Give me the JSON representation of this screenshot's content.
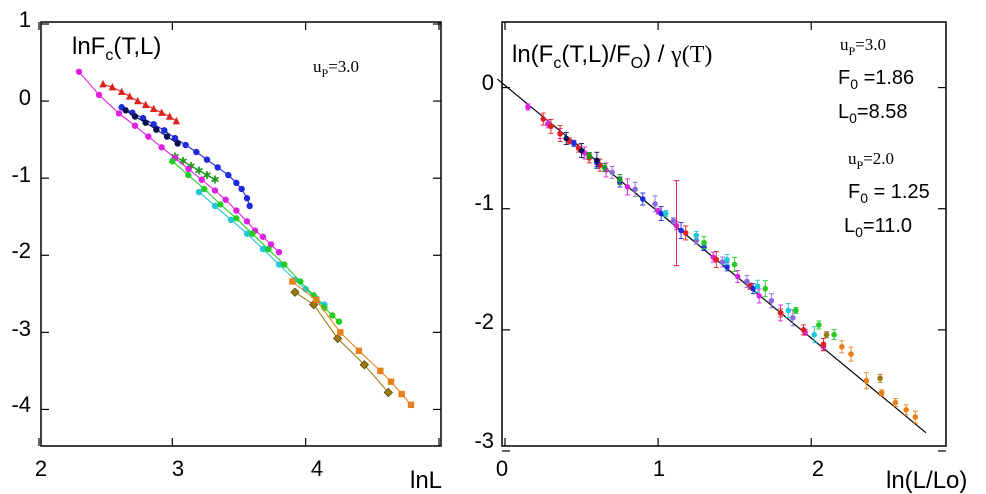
{
  "chart_data": [
    {
      "type": "line",
      "title_main": "lnF",
      "title_sub": "c",
      "title_tail": "(T,L)",
      "xlabel": "lnL",
      "xlim": [
        2,
        5
      ],
      "ylim": [
        -4.5,
        1
      ],
      "xticks": [
        "2",
        "3",
        "4"
      ],
      "yticks": [
        "1",
        "0",
        "-1",
        "-2",
        "-3",
        "-4"
      ],
      "annotation": {
        "u": "u",
        "sub": "P",
        "value": "=3.0"
      },
      "series": [
        {
          "color": "#e0201e",
          "marker": "triangle",
          "points": [
            [
              2.48,
              0.22
            ],
            [
              2.55,
              0.18
            ],
            [
              2.62,
              0.12
            ],
            [
              2.68,
              0.06
            ],
            [
              2.74,
              0.0
            ],
            [
              2.8,
              -0.05
            ],
            [
              2.86,
              -0.1
            ],
            [
              2.92,
              -0.15
            ],
            [
              2.98,
              -0.2
            ],
            [
              3.03,
              -0.26
            ]
          ]
        },
        {
          "color": "#1e2bdc",
          "marker": "circle",
          "points": [
            [
              2.62,
              -0.08
            ],
            [
              2.7,
              -0.15
            ],
            [
              2.78,
              -0.22
            ],
            [
              2.86,
              -0.3
            ],
            [
              2.94,
              -0.38
            ],
            [
              3.02,
              -0.48
            ],
            [
              3.1,
              -0.57
            ],
            [
              3.18,
              -0.66
            ],
            [
              3.26,
              -0.76
            ],
            [
              3.34,
              -0.86
            ],
            [
              3.42,
              -0.96
            ],
            [
              3.48,
              -1.06
            ],
            [
              3.52,
              -1.14
            ],
            [
              3.56,
              -1.26
            ],
            [
              3.58,
              -1.36
            ]
          ]
        },
        {
          "color": "#0a1050",
          "marker": "circle",
          "points": [
            [
              2.65,
              -0.12
            ],
            [
              2.72,
              -0.2
            ],
            [
              2.8,
              -0.28
            ],
            [
              2.88,
              -0.37
            ],
            [
              2.96,
              -0.46
            ],
            [
              3.04,
              -0.55
            ]
          ]
        },
        {
          "color": "#1a9a1a",
          "marker": "star",
          "points": [
            [
              3.02,
              -0.72
            ],
            [
              3.08,
              -0.78
            ],
            [
              3.14,
              -0.84
            ],
            [
              3.2,
              -0.9
            ],
            [
              3.26,
              -0.96
            ],
            [
              3.32,
              -1.02
            ]
          ]
        },
        {
          "color": "#e020e0",
          "marker": "circle",
          "points": [
            [
              2.3,
              0.38
            ],
            [
              2.45,
              0.08
            ],
            [
              2.6,
              -0.16
            ],
            [
              2.72,
              -0.32
            ],
            [
              2.82,
              -0.46
            ],
            [
              2.92,
              -0.6
            ],
            [
              3.02,
              -0.74
            ],
            [
              3.12,
              -0.88
            ],
            [
              3.22,
              -1.02
            ],
            [
              3.32,
              -1.16
            ],
            [
              3.4,
              -1.28
            ],
            [
              3.48,
              -1.42
            ],
            [
              3.56,
              -1.56
            ],
            [
              3.62,
              -1.68
            ],
            [
              3.68,
              -1.76
            ],
            [
              3.74,
              -1.86
            ],
            [
              3.8,
              -1.96
            ]
          ]
        },
        {
          "color": "#22c8d8",
          "marker": "circle",
          "points": [
            [
              3.2,
              -1.18
            ],
            [
              3.32,
              -1.36
            ],
            [
              3.44,
              -1.54
            ],
            [
              3.56,
              -1.72
            ],
            [
              3.68,
              -1.92
            ],
            [
              3.8,
              -2.12
            ],
            [
              3.92,
              -2.32
            ],
            [
              4.0,
              -2.44
            ],
            [
              4.08,
              -2.56
            ],
            [
              4.14,
              -2.64
            ]
          ]
        },
        {
          "color": "#22cc22",
          "marker": "circle",
          "points": [
            [
              3.0,
              -0.78
            ],
            [
              3.12,
              -0.96
            ],
            [
              3.24,
              -1.14
            ],
            [
              3.36,
              -1.34
            ],
            [
              3.48,
              -1.52
            ],
            [
              3.6,
              -1.72
            ],
            [
              3.72,
              -1.92
            ],
            [
              3.84,
              -2.12
            ],
            [
              3.96,
              -2.34
            ],
            [
              4.06,
              -2.52
            ],
            [
              4.14,
              -2.68
            ],
            [
              4.2,
              -2.78
            ],
            [
              4.25,
              -2.86
            ]
          ]
        },
        {
          "color": "#9a7a10",
          "marker": "diamond",
          "points": [
            [
              3.92,
              -2.48
            ],
            [
              4.06,
              -2.64
            ],
            [
              4.24,
              -3.08
            ],
            [
              4.44,
              -3.42
            ],
            [
              4.62,
              -3.78
            ]
          ]
        },
        {
          "color": "#e8801a",
          "marker": "square",
          "points": [
            [
              3.9,
              -2.34
            ],
            [
              4.08,
              -2.58
            ],
            [
              4.26,
              -3.0
            ],
            [
              4.4,
              -3.24
            ],
            [
              4.56,
              -3.5
            ],
            [
              4.64,
              -3.64
            ],
            [
              4.72,
              -3.8
            ],
            [
              4.79,
              -3.94
            ]
          ]
        }
      ]
    },
    {
      "type": "scatter",
      "title_main": "ln(F",
      "title_sub": "c",
      "title_mid": "(T,L)/F",
      "title_sub2": "O",
      "title_tail": ") / ",
      "title_gamma": "γ(T)",
      "xlabel": "ln(L/Lo)",
      "xlim": [
        0,
        2.9
      ],
      "ylim": [
        -3,
        0.5
      ],
      "xticks": [
        "0",
        "1",
        "2"
      ],
      "yticks": [
        "0",
        "-1",
        "-2",
        "-3"
      ],
      "fit_line": {
        "x": [
          -0.05,
          2.75
        ],
        "y": [
          0.07,
          -2.85
        ]
      },
      "annotations": [
        {
          "u": "u",
          "sub": "P",
          "value": "=3.0",
          "f_label": "F",
          "f_sub": "0",
          "f_value": " =1.86",
          "l_label": "L",
          "l_sub": "0",
          "l_value": "=8.58"
        },
        {
          "u": "u",
          "sub": "P",
          "value": "=2.0",
          "f_label": "F",
          "f_sub": "0",
          "f_value": " = 1.25",
          "l_label": "L",
          "l_sub": "0",
          "l_value": "=11.0"
        }
      ],
      "series": [
        {
          "color": "#e020e0",
          "points": [
            [
              0.15,
              -0.16
            ],
            [
              0.28,
              -0.3
            ],
            [
              0.36,
              -0.38
            ],
            [
              0.52,
              -0.54
            ],
            [
              0.66,
              -0.68
            ],
            [
              0.8,
              -0.82
            ],
            [
              1.0,
              -1.02
            ],
            [
              1.12,
              -1.14
            ],
            [
              1.36,
              -1.4
            ],
            [
              1.52,
              -1.56
            ],
            [
              1.66,
              -1.72
            ],
            [
              1.8,
              -1.86
            ],
            [
              1.96,
              -2.02
            ],
            [
              2.08,
              -2.14
            ]
          ]
        },
        {
          "color": "#e0201e",
          "points": [
            [
              0.25,
              -0.26
            ],
            [
              0.3,
              -0.32
            ],
            [
              0.36,
              -0.38
            ],
            [
              0.42,
              -0.44
            ],
            [
              0.48,
              -0.5
            ],
            [
              0.55,
              -0.58
            ],
            [
              0.62,
              -0.64
            ],
            [
              1.18,
              -1.2
            ],
            [
              1.38,
              -1.42
            ],
            [
              1.6,
              -1.64
            ],
            [
              1.8,
              -1.86
            ],
            [
              1.95,
              -2.0
            ],
            [
              2.08,
              -2.12
            ]
          ]
        },
        {
          "color": "#1e2bdc",
          "points": [
            [
              0.45,
              -0.46
            ],
            [
              0.6,
              -0.62
            ],
            [
              0.75,
              -0.78
            ],
            [
              0.9,
              -0.92
            ],
            [
              1.02,
              -1.04
            ],
            [
              1.15,
              -1.18
            ],
            [
              1.3,
              -1.32
            ],
            [
              1.45,
              -1.48
            ],
            [
              1.62,
              -1.66
            ]
          ]
        },
        {
          "color": "#8a6ad8",
          "points": [
            [
              0.7,
              -0.7
            ],
            [
              0.85,
              -0.84
            ],
            [
              0.98,
              -0.96
            ],
            [
              1.1,
              -1.1
            ],
            [
              1.25,
              -1.26
            ],
            [
              1.42,
              -1.44
            ],
            [
              1.58,
              -1.6
            ],
            [
              1.74,
              -1.76
            ],
            [
              1.88,
              -1.9
            ]
          ]
        },
        {
          "color": "#22c8d8",
          "points": [
            [
              1.05,
              -1.04
            ],
            [
              1.25,
              -1.22
            ],
            [
              1.45,
              -1.42
            ],
            [
              1.65,
              -1.64
            ],
            [
              1.85,
              -1.84
            ],
            [
              2.02,
              -2.04
            ]
          ]
        },
        {
          "color": "#22cc22",
          "points": [
            [
              1.3,
              -1.28
            ],
            [
              1.5,
              -1.46
            ],
            [
              1.7,
              -1.66
            ],
            [
              1.9,
              -1.84
            ],
            [
              2.05,
              -1.96
            ],
            [
              2.15,
              -2.04
            ]
          ]
        },
        {
          "color": "#9a7a10",
          "points": [
            [
              2.1,
              -2.04
            ],
            [
              2.45,
              -2.4
            ]
          ]
        },
        {
          "color": "#e8801a",
          "points": [
            [
              2.2,
              -2.14
            ],
            [
              2.26,
              -2.2
            ],
            [
              2.36,
              -2.42
            ],
            [
              2.46,
              -2.52
            ],
            [
              2.55,
              -2.6
            ],
            [
              2.62,
              -2.66
            ],
            [
              2.68,
              -2.72
            ]
          ]
        },
        {
          "color": "#1a9a1a",
          "points": [
            [
              0.55,
              -0.56
            ],
            [
              0.65,
              -0.66
            ],
            [
              0.75,
              -0.76
            ]
          ]
        },
        {
          "color": "#0a1050",
          "points": [
            [
              0.4,
              -0.42
            ],
            [
              0.5,
              -0.52
            ],
            [
              0.6,
              -0.6
            ]
          ]
        }
      ]
    }
  ]
}
